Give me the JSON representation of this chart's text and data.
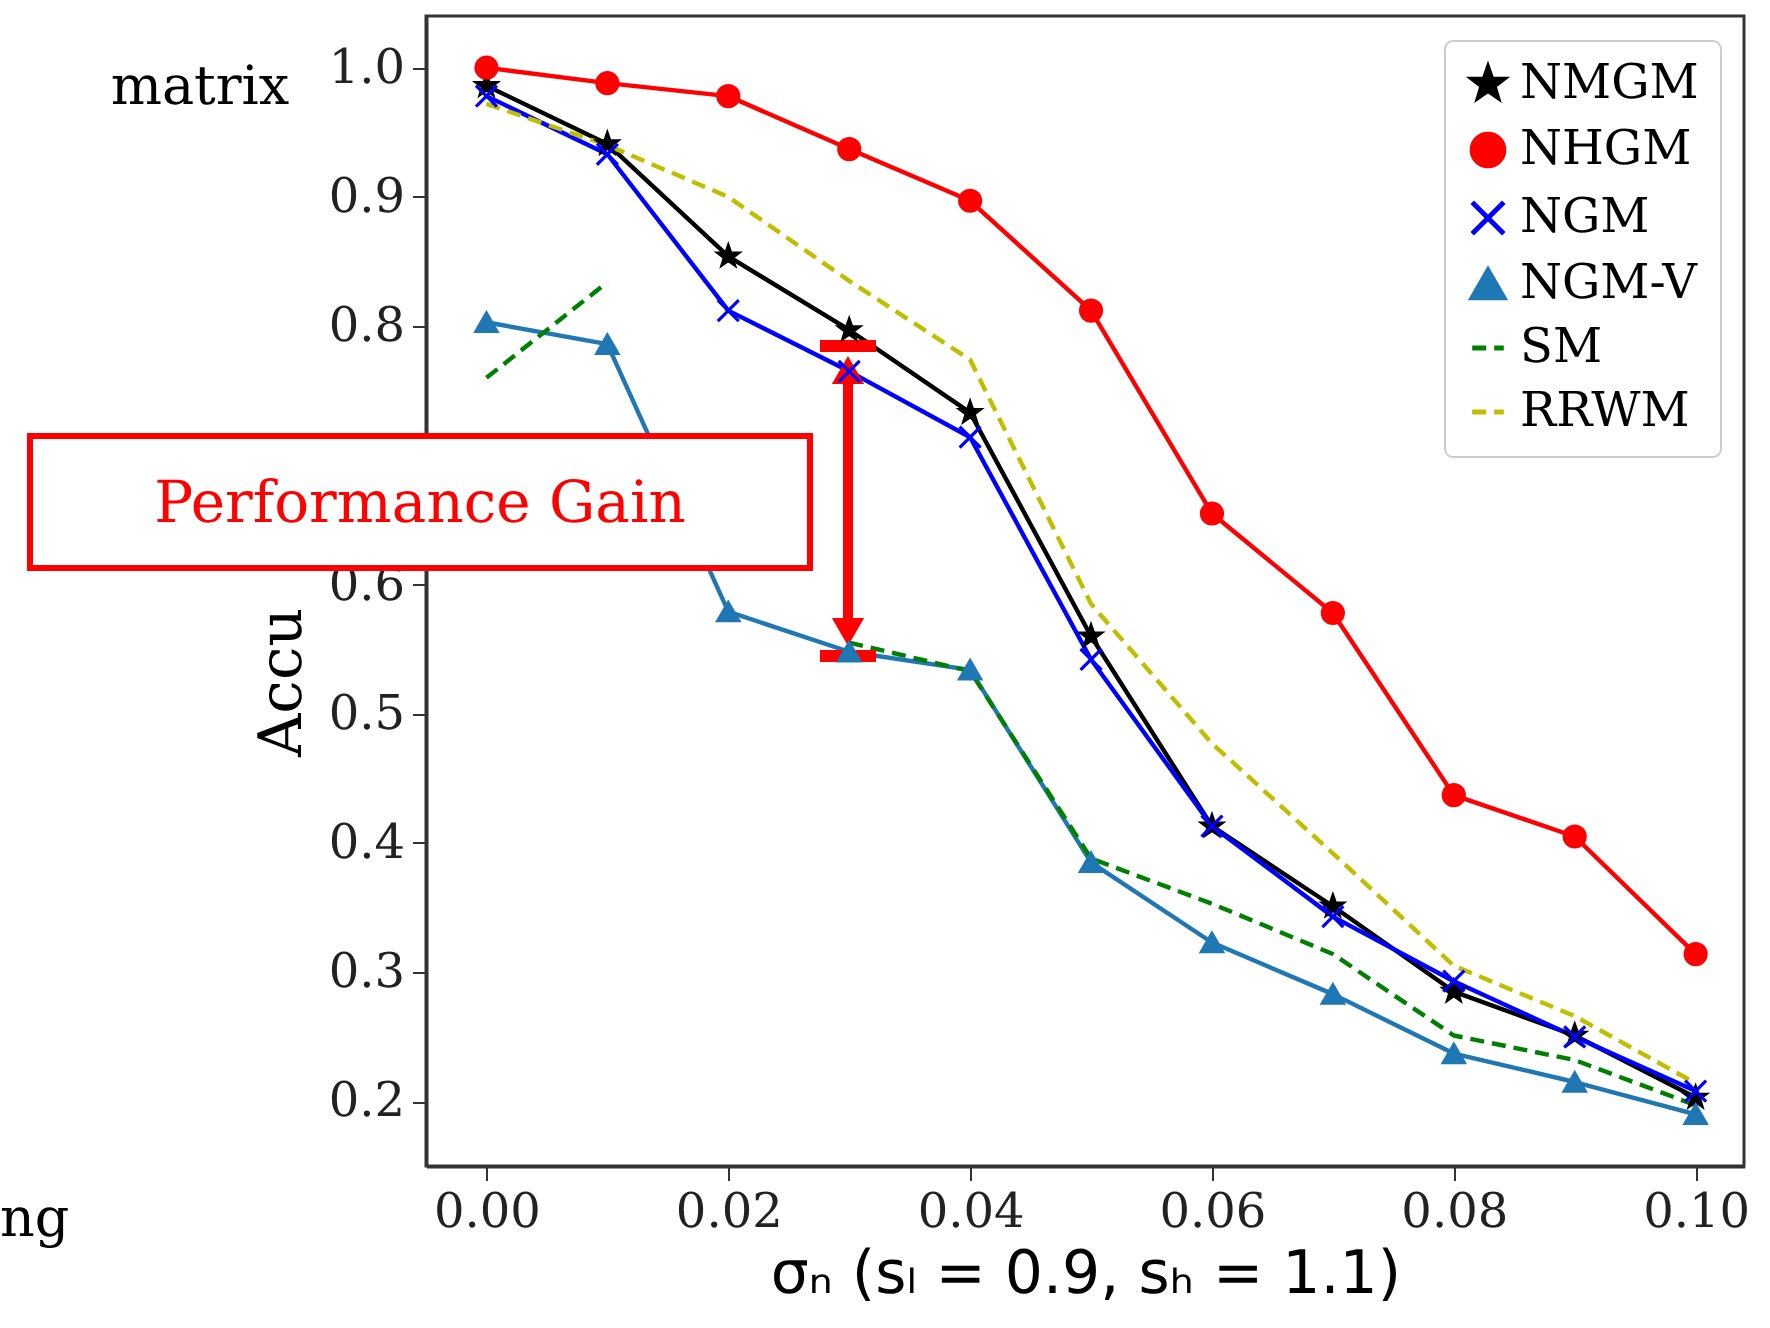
{
  "chart_data": {
    "type": "line",
    "xlabel": "σₙ    (sₗ = 0.9, sₕ = 1.1)",
    "ylabel": "Accu",
    "x": [
      0.0,
      0.01,
      0.02,
      0.03,
      0.04,
      0.05,
      0.06,
      0.07,
      0.08,
      0.09,
      0.1
    ],
    "series": [
      {
        "name": "NMGM",
        "color": "#000000",
        "marker": "star",
        "line_style": "solid",
        "values": [
          0.986,
          0.941,
          0.854,
          0.797,
          0.733,
          0.56,
          0.413,
          0.351,
          0.285,
          0.251,
          0.203
        ]
      },
      {
        "name": "NHGM",
        "color": "#ff0000",
        "marker": "circle",
        "line_style": "solid",
        "values": [
          1.0,
          0.988,
          0.978,
          0.937,
          0.897,
          0.812,
          0.655,
          0.578,
          0.437,
          0.405,
          0.314
        ]
      },
      {
        "name": "NGM",
        "color": "#0000ff",
        "marker": "cross",
        "line_style": "solid",
        "values": [
          0.978,
          0.933,
          0.812,
          0.765,
          0.714,
          0.542,
          0.413,
          0.343,
          0.293,
          0.25,
          0.208
        ]
      },
      {
        "name": "NGM-V",
        "color": "#1f77b4",
        "marker": "triangle",
        "line_style": "solid",
        "values": [
          0.803,
          0.786,
          0.579,
          0.548,
          0.534,
          0.385,
          0.323,
          0.283,
          0.237,
          0.215,
          0.19
        ]
      },
      {
        "name": "SM",
        "color": "#008000",
        "marker": "none",
        "line_style": "dashed",
        "values": [
          0.76,
          0.834,
          null,
          0.555,
          0.533,
          0.388,
          0.353,
          0.314,
          0.251,
          0.232,
          0.197
        ]
      },
      {
        "name": "RRWM",
        "color": "#bfbf00",
        "marker": "none",
        "line_style": "dashed",
        "values": [
          0.972,
          0.94,
          0.9,
          0.835,
          0.774,
          0.585,
          0.477,
          0.392,
          0.305,
          0.266,
          0.214
        ]
      }
    ],
    "xlim": [
      -0.005,
      0.104
    ],
    "ylim": [
      0.15,
      1.04
    ],
    "xticks": [
      {
        "value": 0.0,
        "label": "0.00"
      },
      {
        "value": 0.02,
        "label": "0.02"
      },
      {
        "value": 0.04,
        "label": "0.04"
      },
      {
        "value": 0.06,
        "label": "0.06"
      },
      {
        "value": 0.08,
        "label": "0.08"
      },
      {
        "value": 0.1,
        "label": "0.10"
      }
    ],
    "yticks": [
      {
        "value": 0.2,
        "label": "0.2"
      },
      {
        "value": 0.3,
        "label": "0.3"
      },
      {
        "value": 0.4,
        "label": "0.4"
      },
      {
        "value": 0.5,
        "label": "0.5"
      },
      {
        "value": 0.6,
        "label": "0.6"
      },
      {
        "value": 0.7,
        "label": null
      },
      {
        "value": 0.8,
        "label": "0.8"
      },
      {
        "value": 0.9,
        "label": "0.9"
      },
      {
        "value": 1.0,
        "label": "1.0"
      }
    ],
    "grid": false,
    "legend": "top right",
    "annotations": [
      "Performance Gain",
      "matrix",
      "ng"
    ]
  }
}
